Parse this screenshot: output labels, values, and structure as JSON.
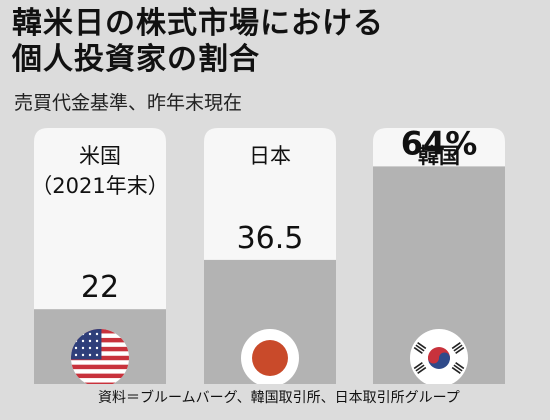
{
  "title_line1": "韓米日の株式市場における",
  "title_line2": "個人投資家の割合",
  "subtitle": "売買代金基準、昨年末現在",
  "source": "資料＝ブルームバーグ、韓国取引所、日本取引所グループ",
  "colors": {
    "background": "#dcdcdc",
    "panel": "#f7f7f7",
    "fill": "#b3b3b3",
    "text": "#111111"
  },
  "chart_data": {
    "type": "bar",
    "categories": [
      "米国（2021年末）",
      "日本",
      "韓国"
    ],
    "category_lines": [
      [
        "米国",
        "（2021年末）"
      ],
      [
        "日本"
      ],
      [
        "韓国"
      ]
    ],
    "values": [
      22,
      36.5,
      64
    ],
    "value_labels": [
      "22",
      "36.5",
      "64%"
    ],
    "flags": [
      "us-flag-icon",
      "japan-flag-icon",
      "korea-flag-icon"
    ],
    "unit": "%",
    "ylim": [
      0,
      100
    ],
    "highlight_index": 2
  }
}
